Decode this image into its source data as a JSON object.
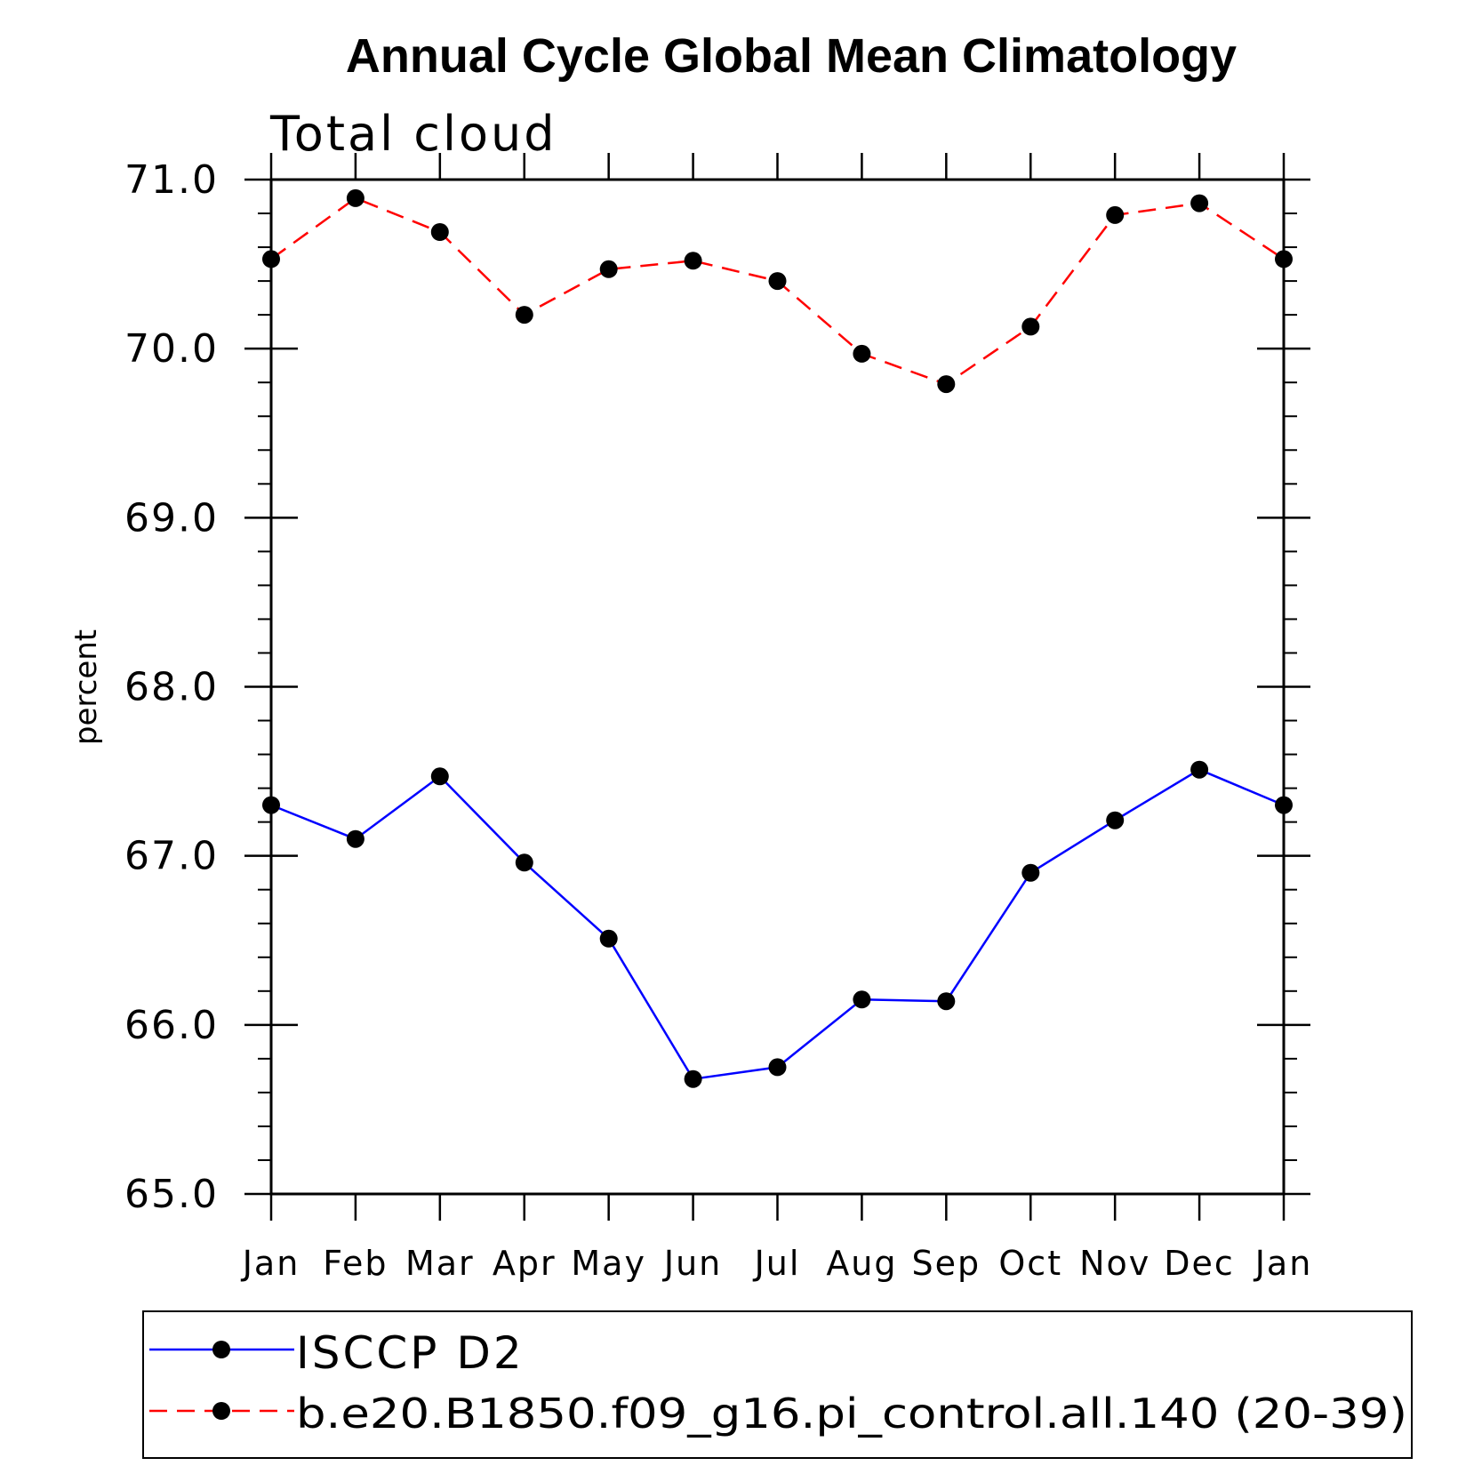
{
  "chart_data": {
    "type": "line",
    "title": "Annual Cycle Global Mean Climatology",
    "subtitle": "Total cloud",
    "ylabel": "percent",
    "xlabel": "",
    "categories": [
      "Jan",
      "Feb",
      "Mar",
      "Apr",
      "May",
      "Jun",
      "Jul",
      "Aug",
      "Sep",
      "Oct",
      "Nov",
      "Dec",
      "Jan"
    ],
    "ylim": [
      65.0,
      71.0
    ],
    "yticks": [
      "65.0",
      "66.0",
      "67.0",
      "68.0",
      "69.0",
      "70.0",
      "71.0"
    ],
    "grid": false,
    "legend_position": "bottom",
    "series": [
      {
        "name": "ISCCP D2",
        "color": "#0000ff",
        "line_style": "solid",
        "marker": "filled-circle",
        "values": [
          67.3,
          67.1,
          67.47,
          66.96,
          66.51,
          65.68,
          65.75,
          66.15,
          66.14,
          66.9,
          67.21,
          67.51,
          67.3
        ]
      },
      {
        "name": "b.e20.B1850.f09_g16.pi_control.all.140 (20-39)",
        "color": "#ff0000",
        "line_style": "dashed",
        "marker": "filled-circle",
        "values": [
          70.53,
          70.89,
          70.69,
          70.2,
          70.47,
          70.52,
          70.4,
          69.97,
          69.79,
          70.13,
          70.79,
          70.86,
          70.53
        ]
      }
    ]
  }
}
